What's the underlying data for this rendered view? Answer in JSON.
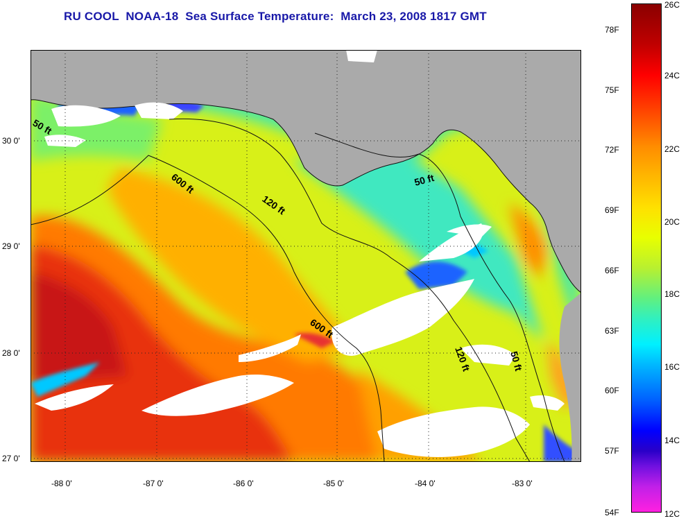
{
  "title": "RU COOL  NOAA-18  Sea Surface Temperature:  March 23, 2008 1817 GMT",
  "map": {
    "lon_labels": [
      "-88 0'",
      "-87 0'",
      "-86 0'",
      "-85 0'",
      "-84 0'",
      "-83 0'"
    ],
    "lat_labels": [
      "30 0'",
      "29 0'",
      "28 0'",
      "27 0'"
    ],
    "contour_labels": {
      "ft600_a": "600 ft",
      "ft600_b": "600 ft",
      "ft120_a": "120 ft",
      "ft120_b": "120 ft",
      "ft50_a": "50 ft",
      "ft50_b": "50 ft",
      "ft50_c": "50 ft"
    }
  },
  "colorbar": {
    "fahrenheit": [
      "78F",
      "75F",
      "72F",
      "69F",
      "66F",
      "63F",
      "60F",
      "57F",
      "54F"
    ],
    "celsius": [
      "26C",
      "24C",
      "22C",
      "20C",
      "18C",
      "16C",
      "14C",
      "12C"
    ]
  },
  "colors": {
    "title": "#1818a8",
    "land": "#aaaaaa",
    "cloud": "#ffffff"
  }
}
